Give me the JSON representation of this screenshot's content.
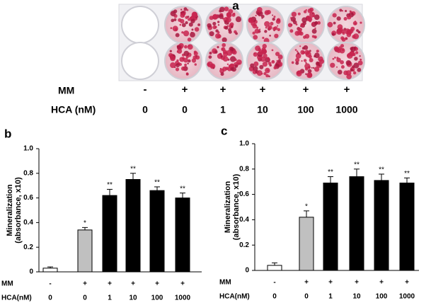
{
  "panel_a": {
    "label": "a",
    "row_labels": [
      "MM",
      "HCA (nM)"
    ],
    "mm": [
      "-",
      "+",
      "+",
      "+",
      "+",
      "+"
    ],
    "hca": [
      "0",
      "0",
      "1",
      "10",
      "100",
      "1000"
    ]
  },
  "chart_data": [
    {
      "type": "bar",
      "panel_label": "b",
      "y_label": [
        "Mineralization",
        "(absorbance, x10)"
      ],
      "category_labels": [
        "MM",
        "HCA(nM)"
      ],
      "mm": [
        "-",
        "+",
        "+",
        "+",
        "+",
        "+"
      ],
      "categories": [
        "0",
        "0",
        "1",
        "10",
        "100",
        "1000"
      ],
      "values": [
        0.03,
        0.34,
        0.62,
        0.75,
        0.66,
        0.6
      ],
      "errors": [
        0.01,
        0.02,
        0.05,
        0.05,
        0.03,
        0.04
      ],
      "colors": [
        "#ffffff",
        "#c0c0c0",
        "#000000",
        "#000000",
        "#000000",
        "#000000"
      ],
      "value_labels": [
        null,
        "*",
        "**",
        "**",
        "**",
        "**"
      ],
      "ylim": [
        0,
        1
      ],
      "yticks": [
        0,
        0.2,
        0.4,
        0.6,
        0.8,
        {
          "value": 1,
          "label": "1.0"
        }
      ]
    },
    {
      "type": "bar",
      "panel_label": "c",
      "y_label": [
        "Mineralization",
        "(absorbance, x10)"
      ],
      "category_labels": [
        "MM",
        "HCA(nM)"
      ],
      "mm": [
        "-",
        "+",
        "+",
        "+",
        "+",
        "+"
      ],
      "categories": [
        "0",
        "0",
        "1",
        "10",
        "100",
        "1000"
      ],
      "values": [
        0.04,
        0.42,
        0.69,
        0.74,
        0.71,
        0.69
      ],
      "errors": [
        0.02,
        0.05,
        0.05,
        0.06,
        0.05,
        0.04
      ],
      "colors": [
        "#ffffff",
        "#c0c0c0",
        "#000000",
        "#000000",
        "#000000",
        "#000000"
      ],
      "value_labels": [
        null,
        "*",
        "**",
        "**",
        "**",
        "**"
      ],
      "ylim": [
        0,
        1
      ],
      "yticks": [
        0,
        0.2,
        0.4,
        0.6,
        0.8,
        {
          "value": 1,
          "label": "1.0"
        }
      ]
    }
  ]
}
